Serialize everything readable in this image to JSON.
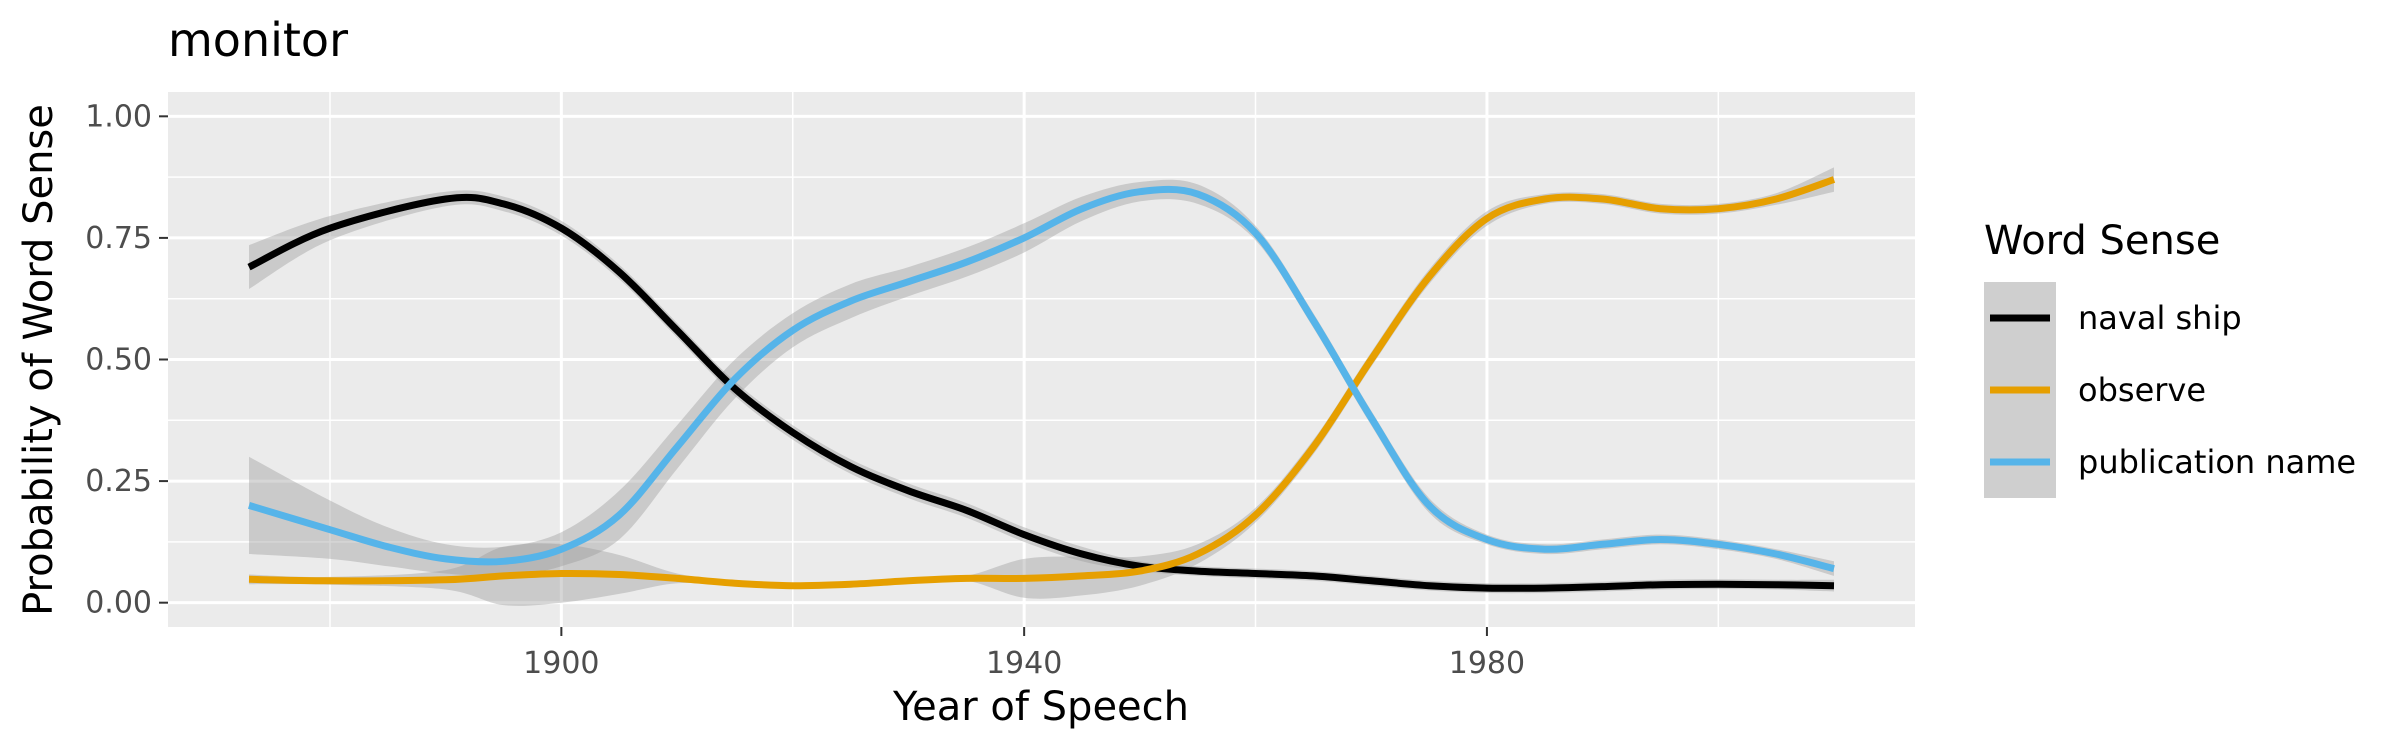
{
  "chart_data": {
    "type": "line",
    "title": "monitor",
    "xlabel": "Year of Speech",
    "ylabel": "Probability of Word Sense",
    "xlim": [
      1866,
      2017
    ],
    "ylim": [
      -0.05,
      1.05
    ],
    "x_ticks": [
      1900,
      1940,
      1980
    ],
    "x_minor_ticks": [
      1880,
      1920,
      1960,
      2000
    ],
    "y_ticks": [
      0.0,
      0.25,
      0.5,
      0.75,
      1.0
    ],
    "y_tick_labels": [
      "0.00",
      "0.25",
      "0.50",
      "0.75",
      "1.00"
    ],
    "grid": true,
    "legend": {
      "title": "Word Sense",
      "position": "right"
    },
    "series": [
      {
        "name": "naval ship",
        "color": "#000000",
        "x": [
          1873,
          1880,
          1890,
          1895,
          1900,
          1905,
          1910,
          1915,
          1920,
          1925,
          1930,
          1935,
          1940,
          1945,
          1950,
          1955,
          1960,
          1965,
          1970,
          1975,
          1980,
          1985,
          1990,
          1995,
          2000,
          2005,
          2010
        ],
        "y": [
          0.69,
          0.77,
          0.83,
          0.82,
          0.77,
          0.68,
          0.56,
          0.44,
          0.35,
          0.28,
          0.23,
          0.19,
          0.14,
          0.1,
          0.075,
          0.065,
          0.06,
          0.055,
          0.045,
          0.035,
          0.03,
          0.03,
          0.033,
          0.037,
          0.038,
          0.037,
          0.035
        ],
        "band": [
          0.045,
          0.025,
          0.015,
          0.015,
          0.015,
          0.015,
          0.015,
          0.015,
          0.015,
          0.015,
          0.015,
          0.015,
          0.015,
          0.015,
          0.01,
          0.01,
          0.01,
          0.01,
          0.01,
          0.01,
          0.01,
          0.01,
          0.01,
          0.01,
          0.01,
          0.01,
          0.012
        ]
      },
      {
        "name": "observe",
        "color": "#e69f00",
        "x": [
          1873,
          1880,
          1890,
          1895,
          1900,
          1905,
          1910,
          1915,
          1920,
          1925,
          1930,
          1935,
          1940,
          1945,
          1950,
          1955,
          1960,
          1965,
          1970,
          1975,
          1980,
          1985,
          1990,
          1995,
          2000,
          2005,
          2010
        ],
        "y": [
          0.048,
          0.045,
          0.047,
          0.055,
          0.06,
          0.058,
          0.05,
          0.04,
          0.035,
          0.038,
          0.045,
          0.05,
          0.05,
          0.055,
          0.065,
          0.1,
          0.18,
          0.32,
          0.5,
          0.67,
          0.79,
          0.83,
          0.83,
          0.81,
          0.81,
          0.83,
          0.87
        ],
        "band": [
          0.01,
          0.008,
          0.02,
          0.06,
          0.06,
          0.04,
          0.01,
          0.005,
          0.005,
          0.005,
          0.005,
          0.005,
          0.04,
          0.04,
          0.03,
          0.02,
          0.015,
          0.015,
          0.015,
          0.015,
          0.015,
          0.01,
          0.01,
          0.01,
          0.01,
          0.012,
          0.025
        ]
      },
      {
        "name": "publication name",
        "color": "#56b4e9",
        "x": [
          1873,
          1880,
          1885,
          1890,
          1895,
          1900,
          1905,
          1910,
          1915,
          1920,
          1925,
          1930,
          1935,
          1940,
          1945,
          1950,
          1955,
          1960,
          1965,
          1970,
          1975,
          1980,
          1985,
          1990,
          1995,
          2000,
          2005,
          2010
        ],
        "y": [
          0.2,
          0.15,
          0.115,
          0.09,
          0.085,
          0.11,
          0.18,
          0.32,
          0.46,
          0.56,
          0.62,
          0.66,
          0.7,
          0.75,
          0.81,
          0.845,
          0.84,
          0.76,
          0.58,
          0.38,
          0.2,
          0.13,
          0.11,
          0.12,
          0.13,
          0.12,
          0.1,
          0.07
        ],
        "band": [
          0.1,
          0.06,
          0.04,
          0.03,
          0.03,
          0.035,
          0.05,
          0.045,
          0.04,
          0.035,
          0.035,
          0.03,
          0.03,
          0.03,
          0.025,
          0.02,
          0.02,
          0.015,
          0.015,
          0.015,
          0.015,
          0.01,
          0.01,
          0.01,
          0.01,
          0.01,
          0.01,
          0.015
        ]
      }
    ]
  }
}
